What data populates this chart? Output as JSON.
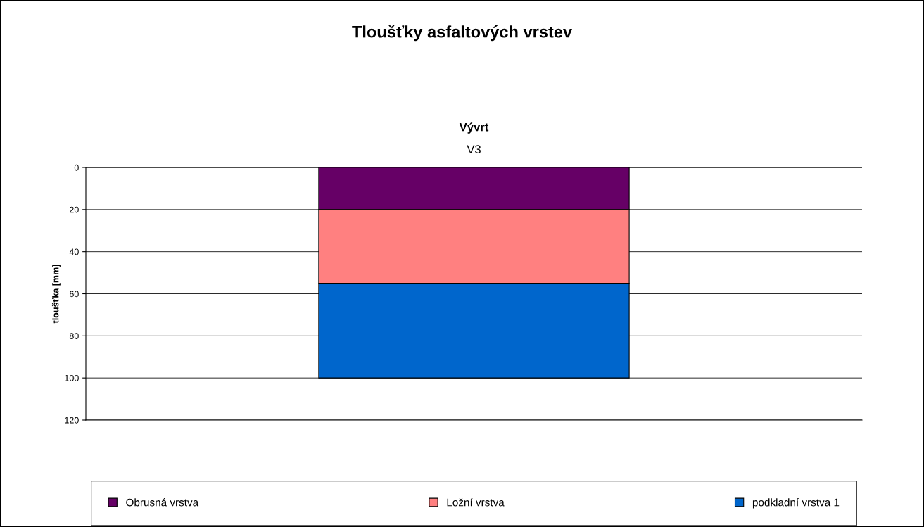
{
  "chart_data": {
    "type": "bar",
    "stacked": true,
    "title": "Tloušťky asfaltových vrstev",
    "xlabel": "Vývrt",
    "ylabel": "tloušťka [mm]",
    "categories": [
      "V3"
    ],
    "series": [
      {
        "name": "Obrusná vrstva",
        "color": "#660066",
        "values": [
          20
        ]
      },
      {
        "name": "Ložní vrstva",
        "color": "#ff8080",
        "values": [
          35
        ]
      },
      {
        "name": "podkladní vrstva 1",
        "color": "#0066cc",
        "values": [
          45
        ]
      }
    ],
    "ylim": [
      120,
      0
    ],
    "yticks": [
      0,
      20,
      40,
      60,
      80,
      100,
      120
    ],
    "grid": "y",
    "legend": "bottom"
  }
}
